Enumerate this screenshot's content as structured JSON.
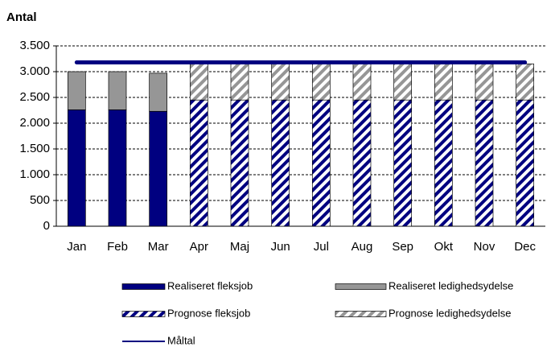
{
  "chart_data": {
    "type": "bar",
    "stacked": true,
    "y_label": "Antal",
    "categories": [
      "Jan",
      "Feb",
      "Mar",
      "Apr",
      "Maj",
      "Jun",
      "Jul",
      "Aug",
      "Sep",
      "Okt",
      "Nov",
      "Dec"
    ],
    "series": [
      {
        "name": "Realiseret fleksjob",
        "color": "#000080",
        "pattern": "solid",
        "values": [
          2260,
          2260,
          2230,
          null,
          null,
          null,
          null,
          null,
          null,
          null,
          null,
          null
        ]
      },
      {
        "name": "Realiseret ledighedsydelse",
        "color": "#969696",
        "pattern": "solid",
        "values": [
          740,
          740,
          740,
          null,
          null,
          null,
          null,
          null,
          null,
          null,
          null,
          null
        ]
      },
      {
        "name": "Prognose fleksjob",
        "color": "#000080",
        "pattern": "hatch",
        "values": [
          null,
          null,
          null,
          2450,
          2450,
          2450,
          2450,
          2450,
          2450,
          2450,
          2450,
          2450
        ]
      },
      {
        "name": "Prognose ledighedsydelse",
        "color": "#969696",
        "pattern": "hatch",
        "values": [
          null,
          null,
          null,
          700,
          700,
          700,
          700,
          700,
          700,
          700,
          700,
          700
        ]
      },
      {
        "name": "Måltal",
        "color": "#000080",
        "type": "line",
        "values": [
          3180,
          3180,
          3180,
          3180,
          3180,
          3180,
          3180,
          3180,
          3180,
          3180,
          3180,
          3180
        ]
      }
    ],
    "ylim": [
      0,
      3500
    ],
    "yticks": [
      0,
      500,
      {
        "value": 1000,
        "label": "1.000"
      },
      {
        "value": 1500,
        "label": "1.500"
      },
      {
        "value": 2000,
        "label": "2.000"
      },
      {
        "value": 2500,
        "label": "2.500"
      },
      {
        "value": 3000,
        "label": "3.000"
      },
      {
        "value": 3500,
        "label": "3.500"
      }
    ],
    "grid": true
  }
}
